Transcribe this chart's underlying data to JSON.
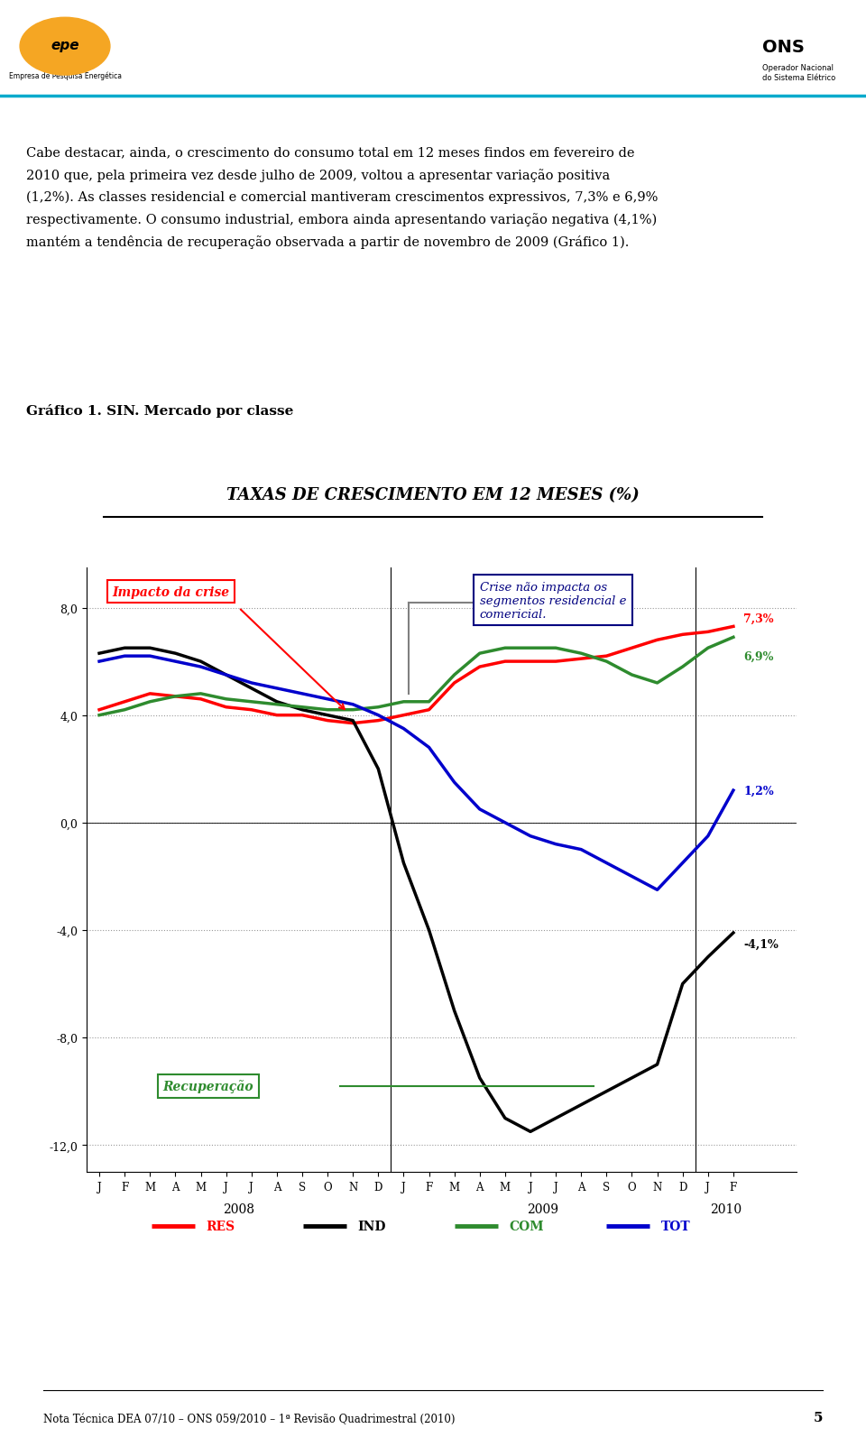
{
  "title": "TAXAS DE CRESCIMENTO EM 12 MESES (%)",
  "subtitle_label": "Gráfico 1. SIN. Mercado por classe",
  "x_labels": [
    "J",
    "F",
    "M",
    "A",
    "M",
    "J",
    "J",
    "A",
    "S",
    "O",
    "N",
    "D",
    "J",
    "F",
    "M",
    "A",
    "M",
    "J",
    "J",
    "A",
    "S",
    "O",
    "N",
    "D",
    "J",
    "F"
  ],
  "ylim": [
    -13,
    9.5
  ],
  "yticks": [
    -12,
    -8,
    -4,
    0,
    4,
    8
  ],
  "ytick_labels": [
    "-12,0",
    "-8,0",
    "-4,0",
    "0,0",
    "4,0",
    "8,0"
  ],
  "RES": [
    4.2,
    4.5,
    4.8,
    4.7,
    4.6,
    4.3,
    4.2,
    4.0,
    4.0,
    3.8,
    3.7,
    3.8,
    4.0,
    4.2,
    5.2,
    5.8,
    6.0,
    6.0,
    6.0,
    6.1,
    6.2,
    6.5,
    6.8,
    7.0,
    7.1,
    7.3
  ],
  "IND": [
    6.3,
    6.5,
    6.5,
    6.3,
    6.0,
    5.5,
    5.0,
    4.5,
    4.2,
    4.0,
    3.8,
    2.0,
    -1.5,
    -4.0,
    -7.0,
    -9.5,
    -11.0,
    -11.5,
    -11.0,
    -10.5,
    -10.0,
    -9.5,
    -9.0,
    -6.0,
    -5.0,
    -4.1
  ],
  "COM": [
    4.0,
    4.2,
    4.5,
    4.7,
    4.8,
    4.6,
    4.5,
    4.4,
    4.3,
    4.2,
    4.2,
    4.3,
    4.5,
    4.5,
    5.5,
    6.3,
    6.5,
    6.5,
    6.5,
    6.3,
    6.0,
    5.5,
    5.2,
    5.8,
    6.5,
    6.9
  ],
  "TOT": [
    6.0,
    6.2,
    6.2,
    6.0,
    5.8,
    5.5,
    5.2,
    5.0,
    4.8,
    4.6,
    4.4,
    4.0,
    3.5,
    2.8,
    1.5,
    0.5,
    0.0,
    -0.5,
    -0.8,
    -1.0,
    -1.5,
    -2.0,
    -2.5,
    -1.5,
    -0.5,
    1.2
  ],
  "res_color": "#ff0000",
  "ind_color": "#000000",
  "com_color": "#2e8b2e",
  "tot_color": "#0000cc",
  "end_label_res": "7,3%",
  "end_label_ind": "-4,1%",
  "end_label_com": "6,9%",
  "end_label_tot": "1,2%",
  "annotation_impacto": "Impacto da crise",
  "annotation_crise": "Crise não impacta os\nsegmentos residencial e\ncomericial.",
  "annotation_recuperacao": "Recuperação",
  "footer": "Nota Técnica DEA 07/10 – ONS 059/2010 – 1ª Revisão Quadrimestral (2010)",
  "page_num": "5",
  "body_text_line1": "Cabe destacar, ainda, o crescimento do consumo total em 12 meses findos em fevereiro de",
  "body_text_line2": "2010 que, pela primeira vez desde julho de 2009, voltou a apresentar variação positiva",
  "body_text_line3": "(1,2%). As classes residencial e comercial mantiveram crescimentos expressivos, 7,3% e 6,9%",
  "body_text_line4": "respectivamente. O consumo industrial, embora ainda apresentando variação negativa (4,1%)",
  "body_text_line5": "mantém a tendência de recuperação observada a partir de novembro de 2009 (Gráfico 1).",
  "background_color": "#ffffff"
}
